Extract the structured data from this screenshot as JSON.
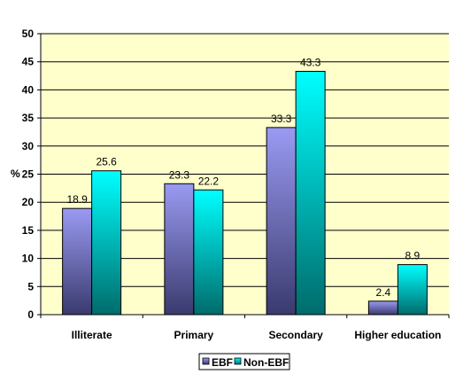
{
  "chart_data": {
    "type": "bar",
    "title": "",
    "xlabel": "",
    "ylabel": "%",
    "ylim": [
      0,
      50
    ],
    "yticks": [
      "0",
      "5",
      "10",
      "15",
      "20",
      "25",
      "30",
      "35",
      "40",
      "45",
      "50"
    ],
    "grid": true,
    "legend_position": "bottom",
    "categories": [
      "Illiterate",
      "Primary",
      "Secondary",
      "Higher education"
    ],
    "series": [
      {
        "name": "EBF",
        "values": [
          18.9,
          23.3,
          33.3,
          2.4
        ],
        "labels": [
          "18.9",
          "23.3",
          "33.3",
          "2.4"
        ],
        "color_top": "#9A9AF2",
        "color_bottom": "#3A3A6E"
      },
      {
        "name": "Non-EBF",
        "values": [
          25.6,
          22.2,
          43.3,
          8.9
        ],
        "labels": [
          "25.6",
          "22.2",
          "43.3",
          "8.9"
        ],
        "color_top": "#00FFFF",
        "color_bottom": "#006B6B"
      }
    ],
    "plot_background": "#FFFFCC"
  }
}
